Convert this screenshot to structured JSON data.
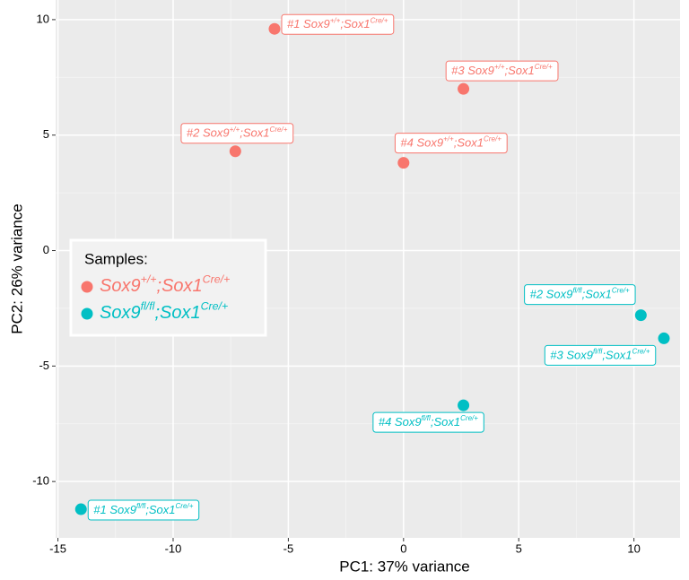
{
  "chart_data": {
    "type": "scatter",
    "x_label": "PC1: 37% variance",
    "y_label": "PC2: 26% variance",
    "xlim": [
      -15.1,
      12.0
    ],
    "ylim": [
      -12.44,
      10.85
    ],
    "xticks": [
      -15,
      -10,
      -5,
      0,
      5,
      10
    ],
    "yticks": [
      -10,
      -5,
      0,
      5,
      10
    ],
    "grid": true,
    "legend": "left",
    "legend_title": "Samples:",
    "series": [
      {
        "name": [
          "Sox9",
          "+/+",
          ";Sox1",
          "Cre/+"
        ],
        "color": "#F8766D",
        "x": [
          -5.6,
          -7.3,
          2.6,
          0.0
        ],
        "y": [
          9.6,
          4.3,
          7.0,
          3.8
        ],
        "labels": [
          [
            "#1 Sox9",
            "+/+",
            ";Sox1",
            "Cre/+"
          ],
          [
            "#2 Sox9",
            "+/+",
            ";Sox1",
            "Cre/+"
          ],
          [
            "#3 Sox9",
            "+/+",
            ";Sox1",
            "Cre/+"
          ],
          [
            "#4 Sox9",
            "+/+",
            ";Sox1",
            "Cre/+"
          ]
        ]
      },
      {
        "name": [
          "Sox9",
          "fl/fl",
          ";Sox1",
          "Cre/+"
        ],
        "color": "#00BFC4",
        "x": [
          -14.0,
          10.3,
          11.3,
          2.6
        ],
        "y": [
          -11.2,
          -2.8,
          -3.8,
          -6.7
        ],
        "labels": [
          [
            "#1 Sox9",
            "fl/fl",
            ";Sox1",
            "Cre/+"
          ],
          [
            "#2 Sox9",
            "fl/fl",
            ";Sox1",
            "Cre/+"
          ],
          [
            "#3 Sox9",
            "fl/fl",
            ";Sox1",
            "Cre/+"
          ],
          [
            "#4 Sox9",
            "fl/fl",
            ";Sox1",
            "Cre/+"
          ]
        ]
      }
    ]
  }
}
